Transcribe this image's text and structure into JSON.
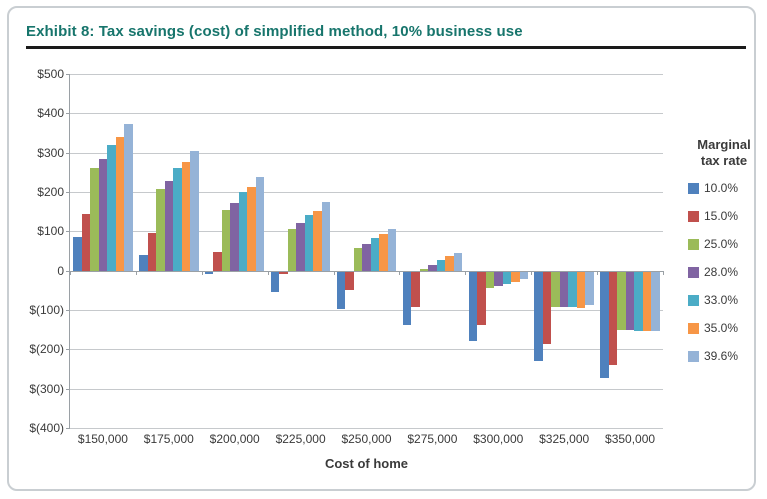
{
  "header": {
    "title": "Exhibit 8: Tax savings (cost) of simplified method, 10% business use",
    "title_color": "#17756C"
  },
  "chart_data": {
    "type": "bar",
    "title": "Exhibit 8: Tax savings (cost) of simplified method, 10% business use",
    "xlabel": "Cost of home",
    "ylabel": "",
    "ylim": [
      -400,
      500
    ],
    "grid": true,
    "legend_position": "right",
    "legend_title": "Marginal tax rate",
    "categories": [
      "$150,000",
      "$175,000",
      "$200,000",
      "$225,000",
      "$250,000",
      "$275,000",
      "$300,000",
      "$325,000",
      "$350,000"
    ],
    "ytick_values": [
      500,
      400,
      300,
      200,
      100,
      0,
      -100,
      -200,
      -300,
      -400
    ],
    "ytick_labels": [
      "$500",
      "$400",
      "$300",
      "$200",
      "$100",
      "0",
      "$(100)",
      "$(200)",
      "$(300)",
      "$(400)"
    ],
    "series": [
      {
        "name": "10.0%",
        "color": "#4F81BD",
        "values": [
          85,
          40,
          -7,
          -52,
          -95,
          -135,
          -177,
          -228,
          -270
        ]
      },
      {
        "name": "15.0%",
        "color": "#C0504D",
        "values": [
          143,
          97,
          47,
          -5,
          -46,
          -91,
          -135,
          -185,
          -238
        ]
      },
      {
        "name": "25.0%",
        "color": "#9BBB59",
        "values": [
          260,
          208,
          153,
          105,
          57,
          5,
          -42,
          -90,
          -148
        ]
      },
      {
        "name": "28.0%",
        "color": "#8064A2",
        "values": [
          283,
          228,
          172,
          120,
          68,
          15,
          -37,
          -90,
          -148
        ]
      },
      {
        "name": "33.0%",
        "color": "#4BACC6",
        "values": [
          320,
          262,
          200,
          142,
          84,
          27,
          -31,
          -90,
          -150
        ]
      },
      {
        "name": "35.0%",
        "color": "#F79646",
        "values": [
          340,
          277,
          213,
          152,
          93,
          38,
          -26,
          -93,
          -152
        ]
      },
      {
        "name": "39.6%",
        "color": "#95B3D7",
        "values": [
          372,
          305,
          238,
          175,
          107,
          44,
          -19,
          -86,
          -152
        ]
      }
    ]
  },
  "colors": {
    "gridline": "#c6c9cc",
    "axis": "#9aa0a5",
    "label_text": "#3a3a3a",
    "title_rule": "#1a1a1a",
    "card_border": "#c9ced2"
  }
}
